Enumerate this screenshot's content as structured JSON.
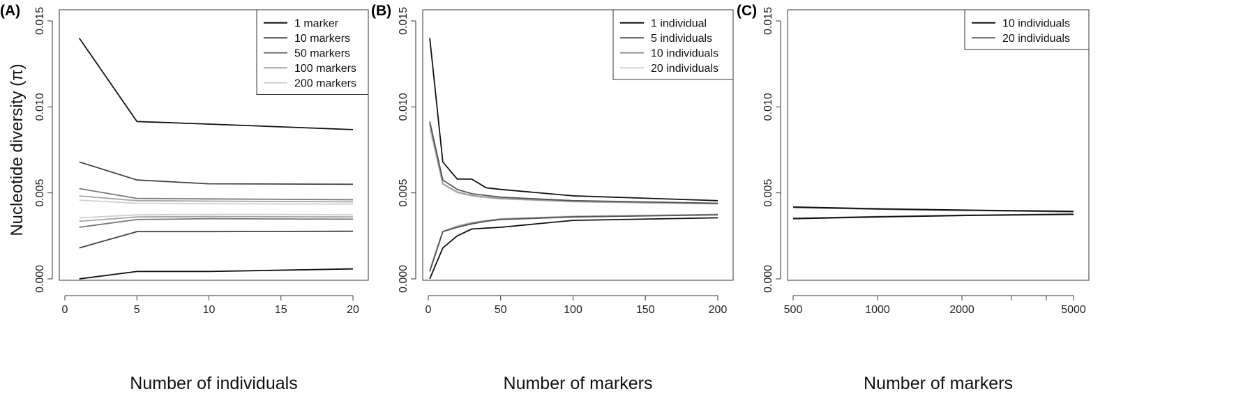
{
  "ylabel": "Nucleotide diversity (π)",
  "chart_data": [
    {
      "panel": "(A)",
      "type": "line",
      "xlabel": "Number of individuals",
      "ylabel": "Nucleotide diversity (π)",
      "xlim": [
        0,
        20
      ],
      "ylim": [
        0,
        0.015
      ],
      "xticks": [
        "0",
        "5",
        "10",
        "15",
        "20"
      ],
      "yticks": [
        "0.000",
        "0.005",
        "0.010",
        "0.015"
      ],
      "legend_position": "top-right",
      "x": [
        1,
        5,
        10,
        20
      ],
      "series": [
        {
          "name": "1 marker",
          "color": "#111111",
          "upper": [
            0.014,
            0.00915,
            0.009,
            0.00868
          ],
          "lower": [
            0.0,
            0.00043,
            0.00043,
            0.00058
          ]
        },
        {
          "name": "10 markers",
          "color": "#444444",
          "upper": [
            0.0068,
            0.00575,
            0.00553,
            0.0055
          ],
          "lower": [
            0.0018,
            0.00275,
            0.00275,
            0.00277
          ]
        },
        {
          "name": "50 markers",
          "color": "#777777",
          "upper": [
            0.00525,
            0.00468,
            0.00465,
            0.0046
          ],
          "lower": [
            0.003,
            0.00345,
            0.0035,
            0.00347
          ]
        },
        {
          "name": "100 markers",
          "color": "#a6a6a6",
          "upper": [
            0.00482,
            0.00455,
            0.00452,
            0.00448
          ],
          "lower": [
            0.00335,
            0.0036,
            0.00362,
            0.0036
          ]
        },
        {
          "name": "200 markers",
          "color": "#d0d0d0",
          "upper": [
            0.00458,
            0.0044,
            0.00437,
            0.00435
          ],
          "lower": [
            0.00355,
            0.00372,
            0.00375,
            0.00373
          ]
        }
      ]
    },
    {
      "panel": "(B)",
      "type": "line",
      "xlabel": "Number of markers",
      "xlim": [
        0,
        200
      ],
      "ylim": [
        0,
        0.015
      ],
      "xticks": [
        "0",
        "50",
        "100",
        "150",
        "200"
      ],
      "yticks": [
        "0.000",
        "0.005",
        "0.010",
        "0.015"
      ],
      "legend_position": "top-right",
      "x": [
        1,
        10,
        20,
        30,
        40,
        50,
        100,
        200
      ],
      "series": [
        {
          "name": "1 individual",
          "color": "#111111",
          "upper": [
            0.014,
            0.0068,
            0.0058,
            0.0058,
            0.0053,
            0.0052,
            0.00483,
            0.00455
          ],
          "lower": [
            0.0,
            0.0018,
            0.0025,
            0.0029,
            0.00295,
            0.003,
            0.0034,
            0.00355
          ]
        },
        {
          "name": "5 individuals",
          "color": "#555555",
          "upper": [
            0.00915,
            0.00575,
            0.0052,
            0.00495,
            0.00485,
            0.00475,
            0.00455,
            0.0044
          ],
          "lower": [
            0.00043,
            0.00275,
            0.003,
            0.0032,
            0.00335,
            0.00345,
            0.0036,
            0.00372
          ]
        },
        {
          "name": "10 individuals",
          "color": "#999999",
          "upper": [
            0.009,
            0.00553,
            0.00505,
            0.00485,
            0.00475,
            0.00467,
            0.0045,
            0.00437
          ],
          "lower": [
            0.00043,
            0.00275,
            0.00305,
            0.00325,
            0.00338,
            0.00348,
            0.00363,
            0.00375
          ]
        },
        {
          "name": "20 individuals",
          "color": "#d4d4d4",
          "upper": [
            0.00868,
            0.0055,
            0.005,
            0.00482,
            0.00472,
            0.00465,
            0.00448,
            0.00435
          ],
          "lower": [
            0.00058,
            0.00277,
            0.00308,
            0.00328,
            0.0034,
            0.0035,
            0.00365,
            0.00373
          ]
        }
      ]
    },
    {
      "panel": "(C)",
      "type": "line",
      "xlabel": "Number of markers",
      "xscale": "log",
      "xlim": [
        500,
        5000
      ],
      "ylim": [
        0,
        0.015
      ],
      "xticks": [
        "500",
        "1000",
        "2000",
        "5000"
      ],
      "xtick_values": [
        500,
        1000,
        2000,
        5000
      ],
      "xminor_values": [
        3000,
        4000
      ],
      "yticks": [
        "0.000",
        "0.005",
        "0.010",
        "0.015"
      ],
      "legend_position": "top-right",
      "x": [
        500,
        1000,
        2000,
        5000
      ],
      "series": [
        {
          "name": "10 individuals",
          "color": "#111111",
          "upper": [
            0.00418,
            0.00408,
            0.004,
            0.00393
          ],
          "lower": [
            0.0035,
            0.0036,
            0.00368,
            0.00375
          ]
        },
        {
          "name": "20 individuals",
          "color": "#666666",
          "upper": [
            0.00415,
            0.00405,
            0.00398,
            0.0039
          ],
          "lower": [
            0.00352,
            0.00362,
            0.0037,
            0.00377
          ]
        }
      ]
    }
  ]
}
